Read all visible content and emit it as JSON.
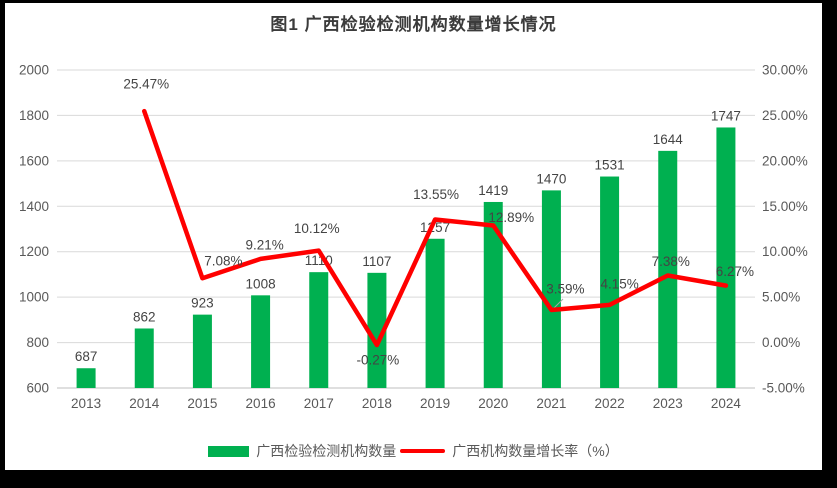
{
  "title": "图1 广西检验检测机构数量增长情况",
  "legend": {
    "items": [
      {
        "label": "广西检验检测机构数量",
        "swatch": "bar",
        "color": "#00B050"
      },
      {
        "label": "广西机构数量增长率（%）",
        "swatch": "line",
        "color": "#FF0000"
      }
    ]
  },
  "colors": {
    "bar": "#00B050",
    "line": "#FF0000",
    "gridline": "#D9D9D9",
    "axis_line": "#BFBFBF",
    "tick_label": "#595959",
    "data_label": "#444444",
    "leader_line": "#A6A6A6",
    "frame_border": "#000000"
  },
  "chart_data": {
    "type": "combo",
    "categories": [
      "2013",
      "2014",
      "2015",
      "2016",
      "2017",
      "2018",
      "2019",
      "2020",
      "2021",
      "2022",
      "2023",
      "2024"
    ],
    "series": [
      {
        "name": "广西检验检测机构数量",
        "type": "bar",
        "axis": "left",
        "color": "#00B050",
        "values": [
          687,
          862,
          923,
          1008,
          1110,
          1107,
          1257,
          1419,
          1470,
          1531,
          1644,
          1747
        ],
        "labels": [
          "687",
          "862",
          "923",
          "1008",
          "1110",
          "1107",
          "1257",
          "1419",
          "1470",
          "1531",
          "1644",
          "1747"
        ]
      },
      {
        "name": "广西机构数量增长率（%）",
        "type": "line",
        "axis": "right",
        "color": "#FF0000",
        "values": [
          null,
          25.47,
          7.08,
          9.21,
          10.12,
          -0.27,
          13.55,
          12.89,
          3.59,
          4.15,
          7.38,
          6.27
        ],
        "labels": [
          null,
          "25.47%",
          "7.08%",
          "9.21%",
          "10.12%",
          "-0.27%",
          "13.55%",
          "12.89%",
          "3.59%",
          "4.15%",
          "7.38%",
          "6.27%"
        ]
      }
    ],
    "axes": {
      "left": {
        "min": 600,
        "max": 2000,
        "step": 200,
        "ticks": [
          "600",
          "800",
          "1000",
          "1200",
          "1400",
          "1600",
          "1800",
          "2000"
        ]
      },
      "right": {
        "min": -5,
        "max": 30,
        "step": 5,
        "ticks": [
          "-5.00%",
          "0.00%",
          "5.00%",
          "10.00%",
          "15.00%",
          "20.00%",
          "25.00%",
          "30.00%"
        ]
      }
    },
    "grid": true,
    "legend_position": "bottom"
  }
}
